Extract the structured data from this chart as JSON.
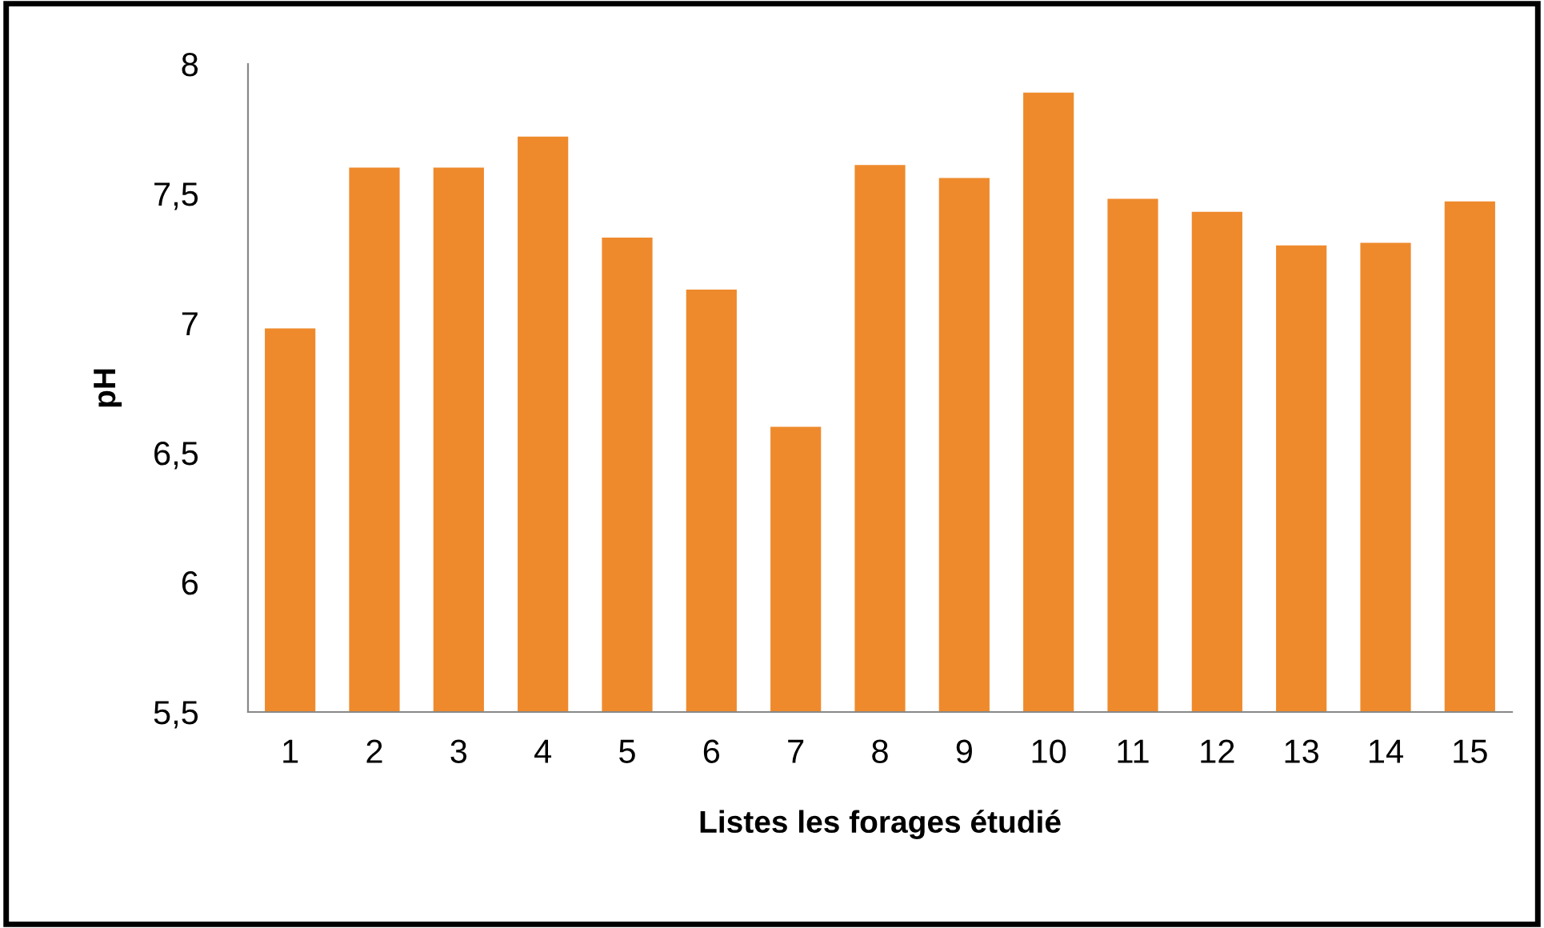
{
  "chart_data": {
    "type": "bar",
    "xlabel": "Listes les forages étudié",
    "ylabel": "pH",
    "categories": [
      "1",
      "2",
      "3",
      "4",
      "5",
      "6",
      "7",
      "8",
      "9",
      "10",
      "11",
      "12",
      "13",
      "14",
      "15"
    ],
    "values": [
      6.98,
      7.6,
      7.6,
      7.72,
      7.33,
      7.13,
      6.6,
      7.61,
      7.56,
      7.89,
      7.48,
      7.43,
      7.3,
      7.31,
      7.47
    ],
    "color": "#ee8a2c",
    "ylim": [
      5.5,
      8
    ],
    "yticks": [
      {
        "value": 5.5,
        "label": "5,5"
      },
      {
        "value": 6,
        "label": "6"
      },
      {
        "value": 6.5,
        "label": "6,5"
      },
      {
        "value": 7,
        "label": "7"
      },
      {
        "value": 7.5,
        "label": "7,5"
      },
      {
        "value": 8,
        "label": "8"
      }
    ],
    "grid": false,
    "legend": false
  }
}
